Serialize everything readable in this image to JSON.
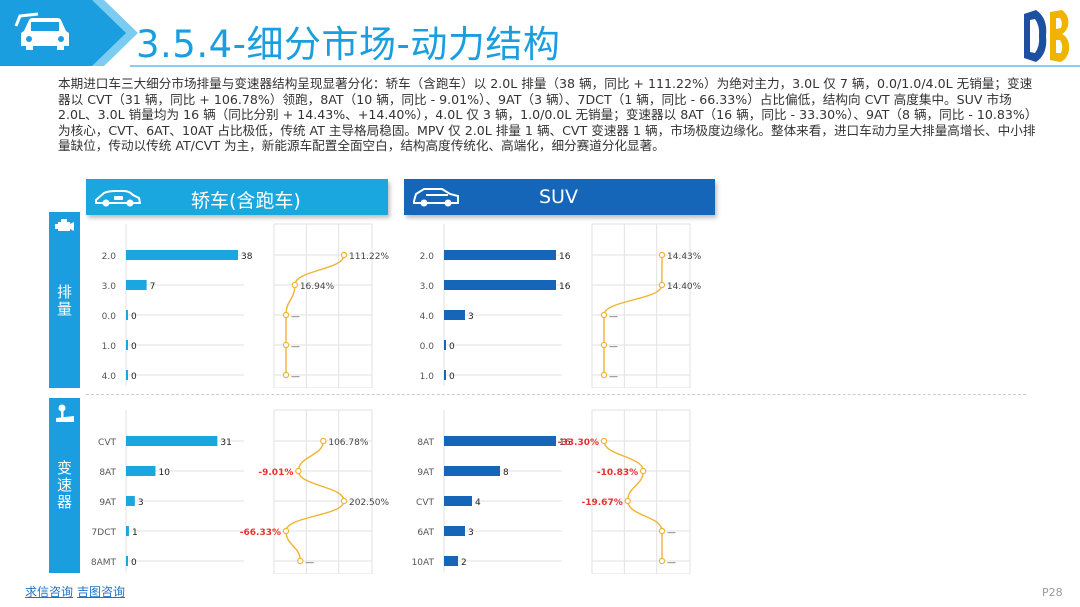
{
  "title": "3.5.4-细分市场-动力结构",
  "intro": "本期进口车三大细分市场排量与变速器结构呈现显著分化：轿车（含跑车）以 2.0L 排量（38 辆，同比 + 111.22%）为绝对主力，3.0L 仅 7 辆，0.0/1.0/4.0L 无销量；变速器以 CVT（31 辆，同比 + 106.78%）领跑，8AT（10 辆，同比 - 9.01%）、9AT（3 辆）、7DCT（1 辆，同比 - 66.33%）占比偏低，结构向 CVT 高度集中。SUV 市场 2.0L、3.0L 销量均为 16 辆（同比分别 + 14.43%、+14.40%），4.0L 仅 3 辆，1.0/0.0L 无销量；变速器以 8AT（16 辆，同比 - 33.30%）、9AT（8 辆，同比 - 10.83%）为核心，CVT、6AT、10AT 占比极低，传统 AT 主导格局稳固。MPV 仅 2.0L 排量 1 辆、CVT 变速器 1 辆，市场极度边缘化。整体来看，进口车动力呈大排量高增长、中小排量缺位，传动以传统 AT/CVT 为主，新能源车配置全面空白，结构高度传统化、高端化，细分赛道分化显著。",
  "segments": {
    "sedan": "轿车(含跑车)",
    "suv": "SUV"
  },
  "side": {
    "displacement": "排量",
    "transmission": "变速器"
  },
  "footer": {
    "link1": "求信咨询",
    "link2": "吉图咨询"
  },
  "page_num": "P28",
  "colors": {
    "title": "#1a9ee0",
    "sedan_bar": "#1aa7e0",
    "suv_bar": "#1565b8",
    "yoy_line": "#f2b233",
    "negative": "#e8312f",
    "side": "#1a9ee0"
  },
  "chart_data": [
    {
      "type": "bar",
      "id": "sedan-displacement",
      "categories": [
        "2.0",
        "3.0",
        "0.0",
        "1.0",
        "4.0"
      ],
      "values": [
        38,
        7,
        0,
        0,
        0
      ],
      "yoy": [
        "111.22%",
        "16.94%",
        "—",
        "—",
        "—"
      ],
      "yoy_pos": [
        111.22,
        16.94,
        0,
        0,
        0
      ]
    },
    {
      "type": "bar",
      "id": "suv-displacement",
      "categories": [
        "2.0",
        "3.0",
        "4.0",
        "0.0",
        "1.0"
      ],
      "values": [
        16,
        16,
        3,
        0,
        0
      ],
      "yoy": [
        "14.43%",
        "14.40%",
        "—",
        "—",
        "—"
      ],
      "yoy_pos": [
        14.43,
        14.4,
        0,
        0,
        0
      ]
    },
    {
      "type": "bar",
      "id": "sedan-transmission",
      "categories": [
        "CVT",
        "8AT",
        "9AT",
        "7DCT",
        "8AMT"
      ],
      "values": [
        31,
        10,
        3,
        1,
        0
      ],
      "yoy": [
        "106.78%",
        "-9.01%",
        "202.50%",
        "-66.33%",
        "—"
      ],
      "yoy_pos": [
        106.78,
        -9.01,
        202.5,
        -66.33,
        0
      ]
    },
    {
      "type": "bar",
      "id": "suv-transmission",
      "categories": [
        "8AT",
        "9AT",
        "CVT",
        "6AT",
        "10AT"
      ],
      "values": [
        16,
        8,
        4,
        3,
        2
      ],
      "yoy": [
        "-33.30%",
        "-10.83%",
        "-19.67%",
        "—",
        "—"
      ],
      "yoy_pos": [
        -33.3,
        -10.83,
        -19.67,
        0,
        0
      ]
    }
  ]
}
